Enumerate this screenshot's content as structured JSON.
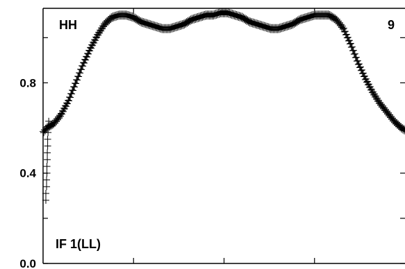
{
  "chart_data": {
    "type": "scatter",
    "marker": "plus",
    "color": "#000000",
    "ylim": [
      0.0,
      1.13
    ],
    "xlim": [
      0,
      100
    ],
    "yticks": [
      0.0,
      0.4,
      0.8
    ],
    "ytick_labels": [
      "0.0",
      "0.4",
      "0.8"
    ],
    "annotations": {
      "top_left": "HH",
      "top_right": "9",
      "bottom_left": "IF 1(LL)"
    },
    "curve_control_points": [
      [
        0.0,
        0.58
      ],
      [
        1.0,
        0.6
      ],
      [
        3.0,
        0.62
      ],
      [
        5.0,
        0.66
      ],
      [
        7.0,
        0.72
      ],
      [
        9.0,
        0.8
      ],
      [
        11.0,
        0.88
      ],
      [
        13.0,
        0.95
      ],
      [
        15.0,
        1.01
      ],
      [
        17.0,
        1.06
      ],
      [
        19.0,
        1.09
      ],
      [
        21.0,
        1.1
      ],
      [
        23.0,
        1.1
      ],
      [
        25.0,
        1.09
      ],
      [
        27.0,
        1.07
      ],
      [
        29.0,
        1.06
      ],
      [
        31.0,
        1.05
      ],
      [
        33.0,
        1.04
      ],
      [
        35.0,
        1.04
      ],
      [
        37.0,
        1.05
      ],
      [
        39.0,
        1.06
      ],
      [
        41.0,
        1.08
      ],
      [
        43.0,
        1.09
      ],
      [
        45.0,
        1.1
      ],
      [
        47.0,
        1.1
      ],
      [
        49.0,
        1.11
      ],
      [
        51.0,
        1.11
      ],
      [
        53.0,
        1.1
      ],
      [
        55.0,
        1.09
      ],
      [
        57.0,
        1.07
      ],
      [
        59.0,
        1.06
      ],
      [
        61.0,
        1.05
      ],
      [
        63.0,
        1.04
      ],
      [
        65.0,
        1.04
      ],
      [
        67.0,
        1.05
      ],
      [
        69.0,
        1.06
      ],
      [
        71.0,
        1.08
      ],
      [
        73.0,
        1.09
      ],
      [
        75.0,
        1.1
      ],
      [
        77.0,
        1.1
      ],
      [
        79.0,
        1.1
      ],
      [
        81.0,
        1.08
      ],
      [
        83.0,
        1.04
      ],
      [
        85.0,
        0.97
      ],
      [
        87.0,
        0.89
      ],
      [
        89.0,
        0.82
      ],
      [
        91.0,
        0.76
      ],
      [
        93.0,
        0.71
      ],
      [
        95.0,
        0.67
      ],
      [
        97.0,
        0.63
      ],
      [
        99.0,
        0.6
      ],
      [
        100.0,
        0.59
      ]
    ],
    "edge_scatter_left": [
      [
        0.0,
        0.28
      ],
      [
        0.0,
        0.31
      ],
      [
        0.2,
        0.34
      ],
      [
        0.2,
        0.37
      ],
      [
        0.3,
        0.4
      ],
      [
        0.3,
        0.43
      ],
      [
        0.4,
        0.46
      ],
      [
        0.4,
        0.49
      ],
      [
        0.5,
        0.52
      ],
      [
        0.5,
        0.55
      ],
      [
        0.6,
        0.58
      ],
      [
        0.7,
        0.61
      ],
      [
        0.8,
        0.63
      ]
    ]
  }
}
